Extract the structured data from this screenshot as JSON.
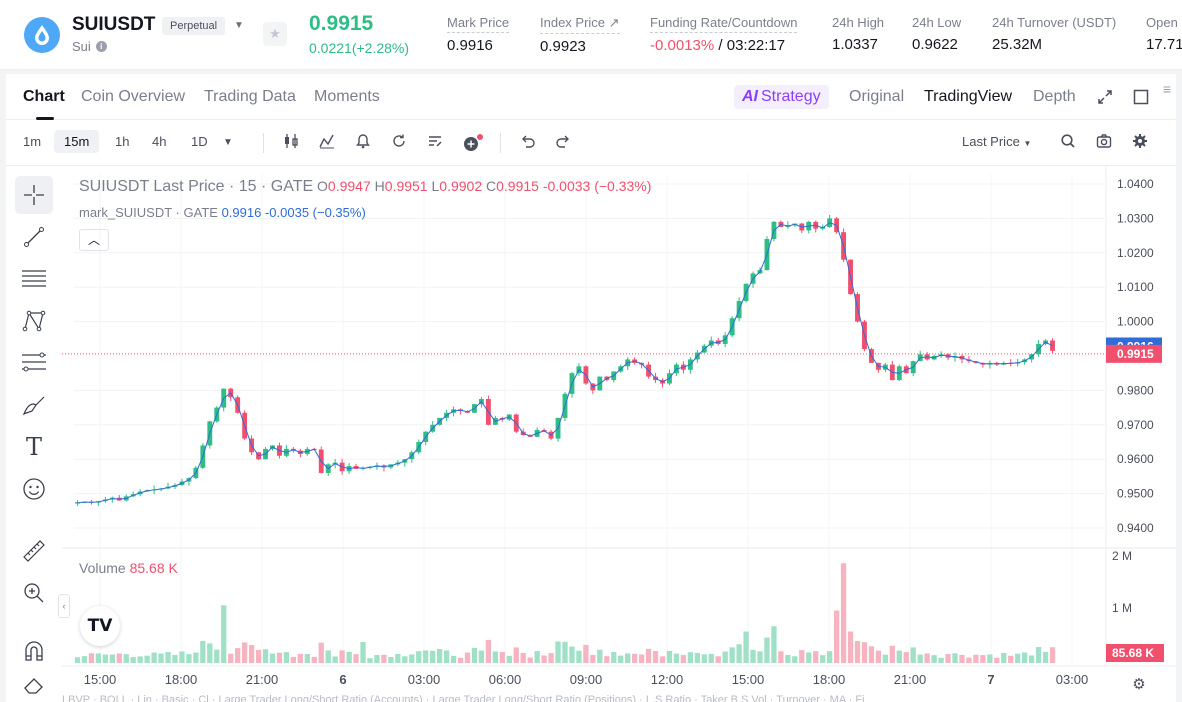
{
  "header": {
    "symbol": "SUIUSDT",
    "contract_type": "Perpetual",
    "coin_name": "Sui",
    "last_price": "0.9915",
    "price_change": "0.0221(+2.28%)",
    "stats": [
      {
        "label": "Mark Price",
        "value": "0.9916"
      },
      {
        "label": "Index Price ↗",
        "value": "0.9923"
      },
      {
        "label": "Funding Rate/Countdown",
        "value_rate": "-0.0013%",
        "value_countdown": " / 03:22:17"
      },
      {
        "label": "24h High",
        "value": "1.0337"
      },
      {
        "label": "24h Low",
        "value": "0.9622"
      },
      {
        "label": "24h Turnover (USDT)",
        "value": "25.32M"
      },
      {
        "label": "Open",
        "value": "17.71"
      }
    ]
  },
  "tabs": {
    "left": [
      "Chart",
      "Coin Overview",
      "Trading Data",
      "Moments"
    ],
    "strategy_label": "Strategy",
    "strategy_prefix": "AI",
    "right": [
      "Original",
      "TradingView",
      "Depth"
    ]
  },
  "toolbar": {
    "timeframes": [
      "1m",
      "15m",
      "1h",
      "4h",
      "1D"
    ],
    "active_timeframe": "15m",
    "price_source": "Last Price"
  },
  "legend": {
    "symbol": "SUIUSDT Last Price · 15 · GATE",
    "o_label": "O",
    "o": "0.9947",
    "h_label": "H",
    "h": "0.9951",
    "l_label": "L",
    "l": "0.9902",
    "c_label": "C",
    "c": "0.9915",
    "chg": "-0.0033 (−0.33%)",
    "mark_name": "mark_SUIUSDT · GATE",
    "mark_value": "0.9916",
    "mark_chg": "-0.0035 (−0.35%)",
    "volume_label": "Volume",
    "volume_value": "85.68 K"
  },
  "indicator_bar": "LBVP · BOLL · Lin · Basic · Cl · Large Trader Long/Short Ratio (Accounts) · Large Trader Long/Short Ratio (Positions) · L.S Ratio · Taker B.S Vol · Turnover · MA · Fi",
  "colors": {
    "up": "#2dbd85",
    "down": "#f0506e",
    "mark": "#2f6bd9",
    "accent": "#8a3ffc"
  },
  "chart_data": {
    "type": "candlestick",
    "title": "SUIUSDT Last Price · 15 · GATE",
    "y_ticks": [
      "1.0400",
      "1.0300",
      "1.0200",
      "1.0100",
      "1.0000",
      "0.9900",
      "0.9800",
      "0.9700",
      "0.9600",
      "0.9500",
      "0.9400"
    ],
    "ylim": [
      0.94,
      1.04
    ],
    "x_ticks": [
      "15:00",
      "18:00",
      "21:00",
      "6",
      "03:00",
      "06:00",
      "09:00",
      "12:00",
      "15:00",
      "18:00",
      "21:00",
      "7",
      "03:00"
    ],
    "price_label_mark": "0.9916",
    "price_label_last": "0.9915",
    "close_path": [
      0.9475,
      0.9476,
      0.9474,
      0.9478,
      0.9483,
      0.9488,
      0.948,
      0.9492,
      0.9498,
      0.9506,
      0.951,
      0.9512,
      0.9515,
      0.952,
      0.9525,
      0.9535,
      0.9545,
      0.9575,
      0.964,
      0.971,
      0.975,
      0.9805,
      0.978,
      0.9735,
      0.966,
      0.962,
      0.96,
      0.963,
      0.964,
      0.961,
      0.963,
      0.9625,
      0.9615,
      0.963,
      0.9628,
      0.956,
      0.9585,
      0.959,
      0.9565,
      0.958,
      0.9572,
      0.9575,
      0.9578,
      0.9582,
      0.9576,
      0.9585,
      0.959,
      0.96,
      0.962,
      0.965,
      0.968,
      0.97,
      0.972,
      0.9735,
      0.9745,
      0.974,
      0.9735,
      0.976,
      0.9775,
      0.97,
      0.972,
      0.9715,
      0.973,
      0.968,
      0.967,
      0.9665,
      0.9685,
      0.968,
      0.966,
      0.972,
      0.979,
      0.985,
      0.987,
      0.982,
      0.98,
      0.984,
      0.983,
      0.9855,
      0.987,
      0.989,
      0.988,
      0.9875,
      0.984,
      0.983,
      0.982,
      0.985,
      0.9875,
      0.986,
      0.989,
      0.991,
      0.993,
      0.9945,
      0.9935,
      0.996,
      1.001,
      1.006,
      1.011,
      1.014,
      1.015,
      1.024,
      1.029,
      1.0275,
      1.028,
      1.0285,
      1.0265,
      1.029,
      1.027,
      1.0275,
      1.03,
      1.026,
      1.018,
      1.008,
      1.0,
      0.992,
      0.988,
      0.986,
      0.9875,
      0.983,
      0.987,
      0.985,
      0.9885,
      0.9905,
      0.989,
      0.99,
      0.9905,
      0.9895,
      0.99,
      0.989,
      0.9885,
      0.988,
      0.9875,
      0.988,
      0.9875,
      0.988,
      0.9878,
      0.9882,
      0.989,
      0.9905,
      0.9935,
      0.9945,
      0.9915
    ],
    "volume_axis": [
      "2 M",
      "1 M"
    ],
    "volume_ylim": [
      0,
      2000000
    ],
    "volume_label_value": "85.68 K"
  }
}
